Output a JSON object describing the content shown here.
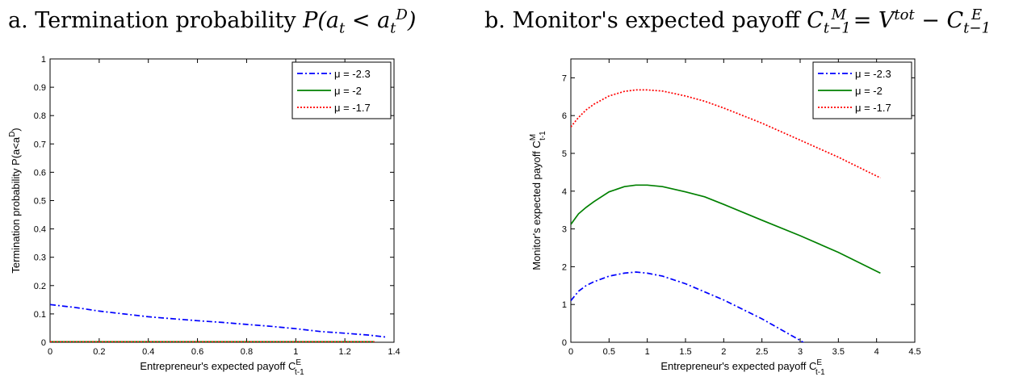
{
  "chart_data": [
    {
      "type": "line",
      "panel_label": "a.",
      "title": "Termination probability",
      "title_math": "P(a_t < a_t^D)",
      "xlabel": "Entrepreneur's expected payoff C",
      "xlabel_sup": "E",
      "xlabel_sub": "t-1",
      "ylabel": "Termination probability P(a<a",
      "ylabel_sup": "D",
      "ylabel_tail": ")",
      "xlim": [
        0,
        1.4
      ],
      "ylim": [
        0,
        1
      ],
      "xticks": [
        "0",
        "0.2",
        "0.4",
        "0.6",
        "0.8",
        "1",
        "1.2",
        "1.4"
      ],
      "yticks": [
        "0",
        "0.1",
        "0.2",
        "0.3",
        "0.4",
        "0.5",
        "0.6",
        "0.7",
        "0.8",
        "0.9",
        "1"
      ],
      "legend_position": "top-right",
      "series": [
        {
          "name": "μ = -2.3",
          "color": "#0000ff",
          "style": "dashdot",
          "x": [
            0,
            0.05,
            0.1,
            0.2,
            0.3,
            0.4,
            0.5,
            0.6,
            0.7,
            0.8,
            0.9,
            1.0,
            1.1,
            1.2,
            1.3,
            1.37
          ],
          "y": [
            0.133,
            0.128,
            0.123,
            0.11,
            0.1,
            0.09,
            0.083,
            0.076,
            0.07,
            0.063,
            0.056,
            0.048,
            0.038,
            0.032,
            0.025,
            0.018
          ]
        },
        {
          "name": "μ = -2",
          "color": "#008000",
          "style": "solid",
          "x": [
            0,
            0.4,
            0.8,
            1.2,
            1.32
          ],
          "y": [
            0.002,
            0.002,
            0.002,
            0.002,
            0.002
          ]
        },
        {
          "name": "μ = -1.7",
          "color": "#ff0000",
          "style": "dotted",
          "x": [
            0,
            0.4,
            0.8,
            1.2,
            1.32
          ],
          "y": [
            0.0015,
            0.0015,
            0.0015,
            0.0015,
            0.0015
          ]
        }
      ]
    },
    {
      "type": "line",
      "panel_label": "b.",
      "title": "Monitor's expected payoff",
      "title_math": "C_{t-1}^M = V^{tot} - C_{t-1}^E",
      "xlabel": "Entrepreneur's expected payoff C",
      "xlabel_sup": "E",
      "xlabel_sub": "t-1",
      "ylabel": "Monitor's expected payoff C",
      "ylabel_sup": "M",
      "ylabel_sub": "t-1",
      "xlim": [
        0,
        4.5
      ],
      "ylim": [
        0,
        7.5
      ],
      "xticks": [
        "0",
        "0.5",
        "1",
        "1.5",
        "2",
        "2.5",
        "3",
        "3.5",
        "4",
        "4.5"
      ],
      "yticks": [
        "0",
        "1",
        "2",
        "3",
        "4",
        "5",
        "6",
        "7"
      ],
      "legend_position": "top-right",
      "series": [
        {
          "name": "μ = -2.3",
          "color": "#0000ff",
          "style": "dashdot",
          "x": [
            0,
            0.1,
            0.2,
            0.3,
            0.5,
            0.7,
            0.85,
            1.0,
            1.2,
            1.5,
            2.0,
            2.5,
            3.0,
            3.35
          ],
          "y": [
            1.1,
            1.35,
            1.5,
            1.6,
            1.75,
            1.83,
            1.86,
            1.83,
            1.75,
            1.55,
            1.12,
            0.62,
            0.05,
            -0.4
          ]
        },
        {
          "name": "μ = -2",
          "color": "#008000",
          "style": "solid",
          "x": [
            0,
            0.1,
            0.2,
            0.3,
            0.5,
            0.7,
            0.85,
            1.0,
            1.2,
            1.5,
            1.75,
            2.0,
            2.5,
            3.0,
            3.5,
            4.05
          ],
          "y": [
            3.12,
            3.4,
            3.57,
            3.72,
            3.98,
            4.12,
            4.16,
            4.16,
            4.12,
            3.98,
            3.85,
            3.65,
            3.23,
            2.82,
            2.38,
            1.83
          ]
        },
        {
          "name": "μ = -1.7",
          "color": "#ff0000",
          "style": "dotted",
          "x": [
            0,
            0.1,
            0.2,
            0.3,
            0.5,
            0.7,
            0.85,
            1.0,
            1.2,
            1.5,
            1.75,
            2.0,
            2.5,
            3.0,
            3.5,
            4.05
          ],
          "y": [
            5.7,
            5.95,
            6.15,
            6.3,
            6.52,
            6.64,
            6.68,
            6.68,
            6.65,
            6.52,
            6.38,
            6.2,
            5.8,
            5.35,
            4.9,
            4.35
          ]
        }
      ]
    }
  ]
}
